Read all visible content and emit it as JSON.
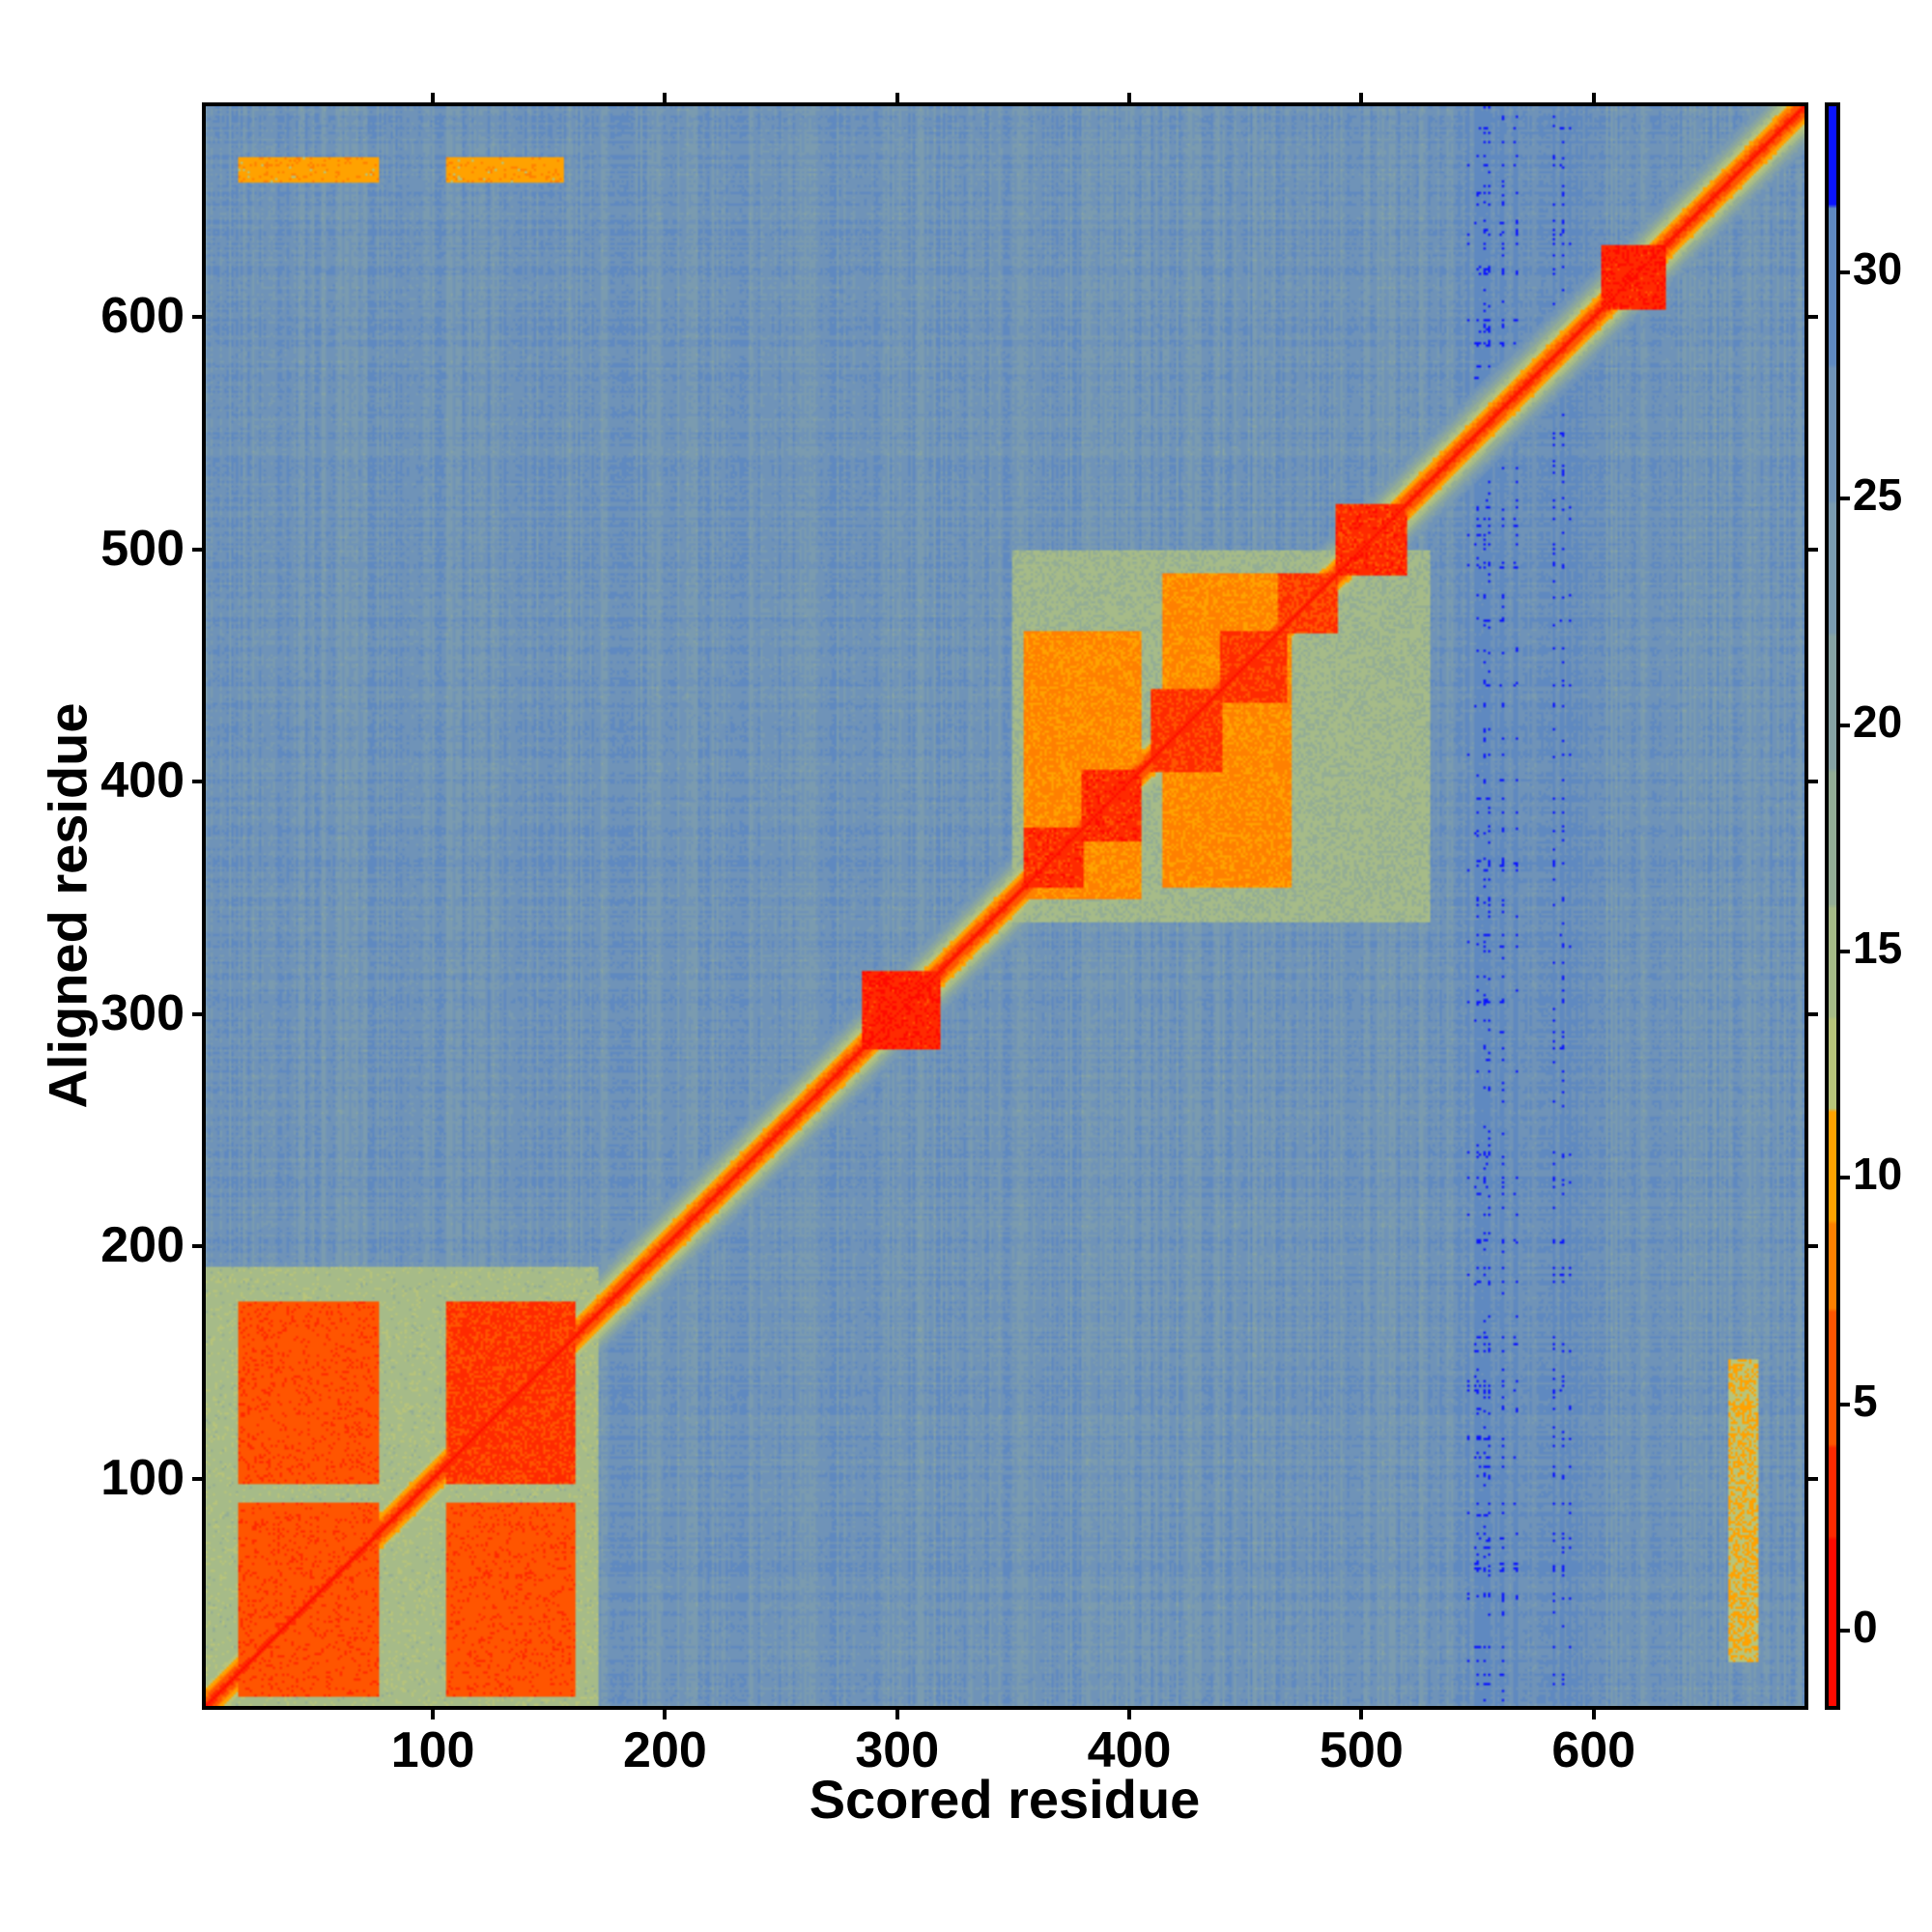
{
  "chart_data": {
    "type": "heatmap",
    "title": "",
    "xlabel": "Scored residue",
    "ylabel": "Aligned residue",
    "n_residues": 692,
    "xlim": [
      1,
      692
    ],
    "ylim": [
      1,
      692
    ],
    "xticks": [
      100,
      200,
      300,
      400,
      500,
      600
    ],
    "yticks": [
      100,
      200,
      300,
      400,
      500,
      600
    ],
    "xtick_labels": [
      "100",
      "200",
      "300",
      "400",
      "500",
      "600"
    ],
    "ytick_labels": [
      "100",
      "200",
      "300",
      "400",
      "500",
      "600"
    ],
    "colorbar": {
      "range": [
        -1.75,
        33.75
      ],
      "ticks": [
        0,
        5,
        10,
        15,
        20,
        25,
        30
      ],
      "tick_labels": [
        "0",
        "5",
        "10",
        "15",
        "20",
        "25",
        "30"
      ],
      "bins": [
        {
          "max": 2,
          "color": "#ff0a00"
        },
        {
          "max": 4,
          "color": "#ff2a00"
        },
        {
          "max": 7,
          "color": "#ff5500"
        },
        {
          "max": 9,
          "color": "#ff8000"
        },
        {
          "max": 11.5,
          "color": "#ffa200"
        },
        {
          "max": 13.5,
          "color": "#b8c47a"
        },
        {
          "max": 16,
          "color": "#a6bb88"
        },
        {
          "max": 19,
          "color": "#93ad95"
        },
        {
          "max": 22,
          "color": "#86a3a4"
        },
        {
          "max": 25,
          "color": "#7a9bb0"
        },
        {
          "max": 28,
          "color": "#6f93b8"
        },
        {
          "max": 31.5,
          "color": "#5f89c0"
        },
        {
          "max": 99,
          "color": "#0a14ff"
        }
      ]
    },
    "background_value": 26,
    "diagonal_value": 1,
    "blocks": [
      {
        "x": [
          15,
          75
        ],
        "y": [
          5,
          88
        ],
        "value": 4.5
      },
      {
        "x": [
          15,
          75
        ],
        "y": [
          97,
          175
        ],
        "value": 4.5
      },
      {
        "x": [
          105,
          160
        ],
        "y": [
          5,
          88
        ],
        "value": 4.5
      },
      {
        "x": [
          105,
          160
        ],
        "y": [
          97,
          175
        ],
        "value": 3
      },
      {
        "x": [
          285,
          318
        ],
        "y": [
          285,
          318
        ],
        "value": 2
      },
      {
        "x": [
          355,
          405
        ],
        "y": [
          350,
          465
        ],
        "value": 8
      },
      {
        "x": [
          415,
          470
        ],
        "y": [
          355,
          490
        ],
        "value": 8
      },
      {
        "x": [
          355,
          380
        ],
        "y": [
          355,
          380
        ],
        "value": 2.5
      },
      {
        "x": [
          380,
          405
        ],
        "y": [
          375,
          405
        ],
        "value": 2.5
      },
      {
        "x": [
          410,
          440
        ],
        "y": [
          405,
          440
        ],
        "value": 3
      },
      {
        "x": [
          440,
          468
        ],
        "y": [
          435,
          465
        ],
        "value": 3
      },
      {
        "x": [
          465,
          490
        ],
        "y": [
          465,
          490
        ],
        "value": 3.5
      },
      {
        "x": [
          490,
          520
        ],
        "y": [
          490,
          520
        ],
        "value": 2.5
      },
      {
        "x": [
          605,
          632
        ],
        "y": [
          605,
          632
        ],
        "value": 2
      },
      {
        "x": [
          15,
          75
        ],
        "y": [
          660,
          670
        ],
        "value": 9.5
      },
      {
        "x": [
          105,
          155
        ],
        "y": [
          660,
          670
        ],
        "value": 9.5
      },
      {
        "x": [
          660,
          672
        ],
        "y": [
          20,
          150
        ],
        "value": 11
      },
      {
        "x": [
          350,
          530
        ],
        "y": [
          340,
          500
        ],
        "value": 15
      },
      {
        "x": [
          0,
          170
        ],
        "y": [
          0,
          190
        ],
        "value": 14
      }
    ]
  }
}
